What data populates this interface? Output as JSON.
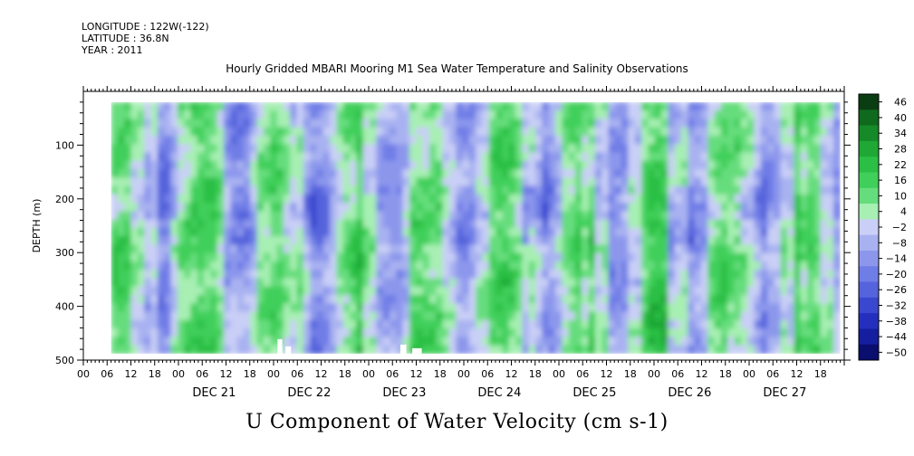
{
  "header": {
    "longitude": "LONGITUDE : 122W(-122)",
    "latitude": "LATITUDE : 36.8N",
    "year": "YEAR : 2011"
  },
  "chart_data": {
    "type": "heatmap",
    "title": "Hourly Gridded MBARI Mooring M1 Sea Water Temperature and Salinity Observations",
    "xlabel": "U Component of Water Velocity (cm s-1)",
    "ylabel": "DEPTH (m)",
    "x_unit": "hour",
    "x_start": "2011-12-20 00:00",
    "x_end": "2011-12-27 23:00",
    "data_extent_x": [
      "2011-12-20 07:00",
      "2011-12-27 23:00"
    ],
    "data_extent_depth": [
      20,
      488
    ],
    "y_range": [
      500,
      0
    ],
    "y_ticks": [
      100,
      200,
      300,
      400,
      500
    ],
    "x_hour_ticks": [
      "00",
      "06",
      "12",
      "18",
      "00",
      "06",
      "12",
      "18",
      "00",
      "06",
      "12",
      "18",
      "00",
      "06",
      "12",
      "18",
      "00",
      "06",
      "12",
      "18",
      "00",
      "06",
      "12",
      "18",
      "00",
      "06",
      "12",
      "18",
      "00",
      "06",
      "12",
      "18"
    ],
    "x_day_labels": [
      "DEC 21",
      "DEC 22",
      "DEC 23",
      "DEC 24",
      "DEC 25",
      "DEC 26",
      "DEC 27"
    ],
    "colorbar": {
      "ticks": [
        46,
        40,
        34,
        28,
        22,
        16,
        10,
        4,
        -2,
        -8,
        -14,
        -20,
        -26,
        -32,
        -38,
        -44,
        -50
      ],
      "tick_labels": [
        "46",
        "40",
        "34",
        "28",
        "22",
        "16",
        "10",
        "4",
        "−2",
        "−8",
        "−14",
        "−20",
        "−26",
        "−32",
        "−38",
        "−44",
        "−50"
      ],
      "colors": {
        "46": "#0b3d12",
        "40": "#0f6a1d",
        "34": "#168a28",
        "28": "#1fa835",
        "22": "#2bbf45",
        "16": "#3fcf5a",
        "10": "#66dd7d",
        "4": "#a7efb3",
        "-2": "#c9cff6",
        "-8": "#a9b2f1",
        "-14": "#8c97ec",
        "-20": "#6f7de6",
        "-26": "#5563dc",
        "-32": "#3a47cf",
        "-38": "#2430bd",
        "-44": "#141e9f",
        "-50": "#0a0e6e"
      }
    },
    "values_note": "Contour shading: alternating vertical bands of positive (green) and negative (blue) U velocity, mostly between -26 and +22 cm s-1"
  }
}
